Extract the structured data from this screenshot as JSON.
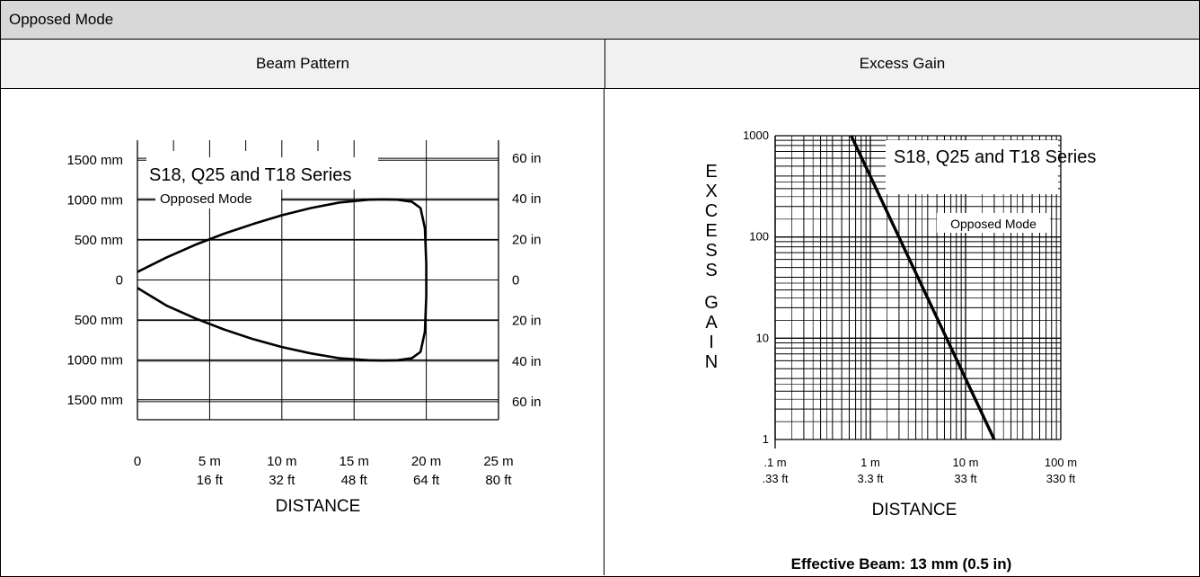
{
  "header": {
    "title": "Opposed Mode"
  },
  "columns": {
    "beam_pattern": "Beam Pattern",
    "excess_gain": "Excess Gain"
  },
  "footnote": "Effective Beam: 13 mm (0.5 in)",
  "chart_data": [
    {
      "type": "line",
      "title": "S18, Q25 and T18 Series",
      "subtitle": "Opposed Mode",
      "xlabel": "DISTANCE",
      "ylabel": "",
      "x_unit": "m",
      "xlim": [
        0,
        25
      ],
      "ylim": [
        -1750,
        1750
      ],
      "x_ticks": [
        {
          "value": 0,
          "label": "0",
          "label2": ""
        },
        {
          "value": 5,
          "label": "5 m",
          "label2": "16 ft"
        },
        {
          "value": 10,
          "label": "10 m",
          "label2": "32 ft"
        },
        {
          "value": 15,
          "label": "15 m",
          "label2": "48 ft"
        },
        {
          "value": 20,
          "label": "20 m",
          "label2": "64 ft"
        },
        {
          "value": 25,
          "label": "25 m",
          "label2": "80  ft"
        }
      ],
      "y_ticks_left": [
        {
          "value": 1500,
          "label": "1500 mm"
        },
        {
          "value": 1000,
          "label": "1000 mm"
        },
        {
          "value": 500,
          "label": "500 mm"
        },
        {
          "value": 0,
          "label": "0"
        },
        {
          "value": -500,
          "label": "500 mm"
        },
        {
          "value": -1000,
          "label": "1000 mm"
        },
        {
          "value": -1500,
          "label": "1500 mm"
        }
      ],
      "y_ticks_right": [
        {
          "value": 1524,
          "label": "60 in"
        },
        {
          "value": 1016,
          "label": "40 in"
        },
        {
          "value": 508,
          "label": "20 in"
        },
        {
          "value": 0,
          "label": "0"
        },
        {
          "value": -508,
          "label": "20 in"
        },
        {
          "value": -1016,
          "label": "40 in"
        },
        {
          "value": -1524,
          "label": "60 in"
        }
      ],
      "series": [
        {
          "x": [
            0,
            2,
            4,
            6,
            8,
            10,
            12,
            14,
            16,
            17,
            18,
            19,
            19.6,
            19.9,
            20.0,
            20.0,
            19.9,
            19.6,
            19,
            18,
            17,
            16,
            14,
            12,
            10,
            8,
            6,
            4,
            2,
            0
          ],
          "y": [
            100,
            280,
            440,
            580,
            700,
            810,
            900,
            970,
            1005,
            1010,
            1005,
            980,
            900,
            650,
            200,
            -200,
            -650,
            -900,
            -980,
            -1005,
            -1010,
            -1005,
            -980,
            -920,
            -840,
            -740,
            -620,
            -480,
            -320,
            -100
          ]
        }
      ]
    },
    {
      "type": "line",
      "title": "S18, Q25 and T18 Series",
      "subtitle": "Opposed Mode",
      "xlabel": "DISTANCE",
      "ylabel": "EXCESS GAIN",
      "x_scale": "log",
      "y_scale": "log",
      "xlim": [
        0.1,
        100
      ],
      "ylim": [
        1,
        1000
      ],
      "x_ticks": [
        {
          "value": 0.1,
          "label": ".1 m",
          "label2": ".33 ft"
        },
        {
          "value": 1,
          "label": "1 m",
          "label2": "3.3 ft"
        },
        {
          "value": 10,
          "label": "10 m",
          "label2": "33 ft"
        },
        {
          "value": 100,
          "label": "100 m",
          "label2": "330 ft"
        }
      ],
      "y_ticks": [
        {
          "value": 1,
          "label": "1"
        },
        {
          "value": 10,
          "label": "10"
        },
        {
          "value": 100,
          "label": "100"
        },
        {
          "value": 1000,
          "label": "1000"
        }
      ],
      "series": [
        {
          "x": [
            0.63,
            20
          ],
          "y": [
            1000,
            1
          ]
        }
      ]
    }
  ]
}
